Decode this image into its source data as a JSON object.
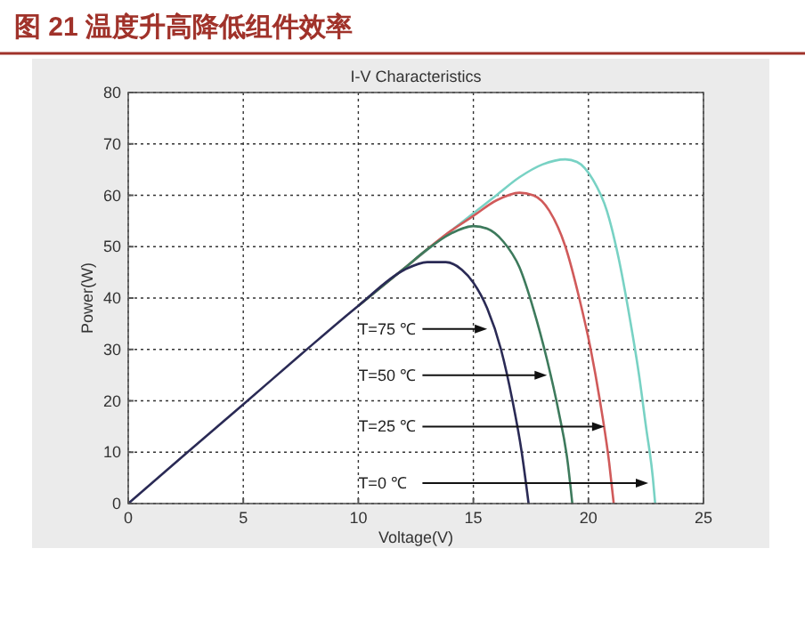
{
  "chart_data": {
    "type": "line",
    "title": "图 21 温度升高降低组件效率",
    "subtitle": "I-V Characteristics",
    "xlabel": "Voltage(V)",
    "ylabel": "Power(W)",
    "xlim": [
      0,
      25
    ],
    "ylim": [
      0,
      80
    ],
    "xticks": [
      0,
      5,
      10,
      15,
      20,
      25
    ],
    "yticks": [
      0,
      10,
      20,
      30,
      40,
      50,
      60,
      70,
      80
    ],
    "grid": true,
    "marker": "none",
    "line_style": "solid",
    "series": [
      {
        "color": "#2a2a55",
        "x": [
          0,
          2.5,
          5,
          7.5,
          10,
          12,
          13,
          13.8,
          14.5,
          15,
          15.6,
          16.2,
          16.7,
          17.1,
          17.4
        ],
        "values": [
          0,
          9.7,
          19.3,
          29,
          38.5,
          45.5,
          47,
          47,
          45.5,
          43,
          38,
          30,
          20,
          10,
          0
        ]
      },
      {
        "color": "#3d7a5c",
        "x": [
          10,
          12,
          13,
          14,
          15,
          15.6,
          16.3,
          17,
          17.6,
          18.2,
          18.7,
          19.1,
          19.3
        ],
        "values": [
          38.5,
          45.8,
          49.5,
          52.5,
          54,
          53.5,
          51,
          46,
          38,
          28,
          18,
          8,
          0
        ]
      },
      {
        "color": "#d05a5a",
        "x": [
          10,
          12,
          14,
          15,
          16,
          17,
          17.6,
          18.3,
          19,
          19.6,
          20.1,
          20.5,
          20.9,
          21.1
        ],
        "values": [
          38.5,
          45.8,
          53,
          56,
          59,
          60.5,
          60,
          57,
          50,
          40,
          30,
          20,
          8,
          0
        ]
      },
      {
        "color": "#78d2c4",
        "x": [
          10,
          12,
          14,
          16,
          17,
          18,
          19,
          19.5,
          20.2,
          20.8,
          21.3,
          21.8,
          22.2,
          22.5,
          22.8,
          22.9
        ],
        "values": [
          38.5,
          45.8,
          53,
          60,
          63.5,
          66,
          67,
          66.5,
          63,
          57,
          48,
          36,
          25,
          15,
          5,
          0
        ]
      }
    ],
    "annotations": [
      {
        "text": "T=75 ℃",
        "x": 15.6,
        "y": 34
      },
      {
        "text": "T=50 ℃",
        "x": 18.2,
        "y": 25
      },
      {
        "text": "T=25 ℃",
        "x": 20.7,
        "y": 15
      },
      {
        "text": "T=0 ℃",
        "x": 22.6,
        "y": 4
      }
    ]
  }
}
